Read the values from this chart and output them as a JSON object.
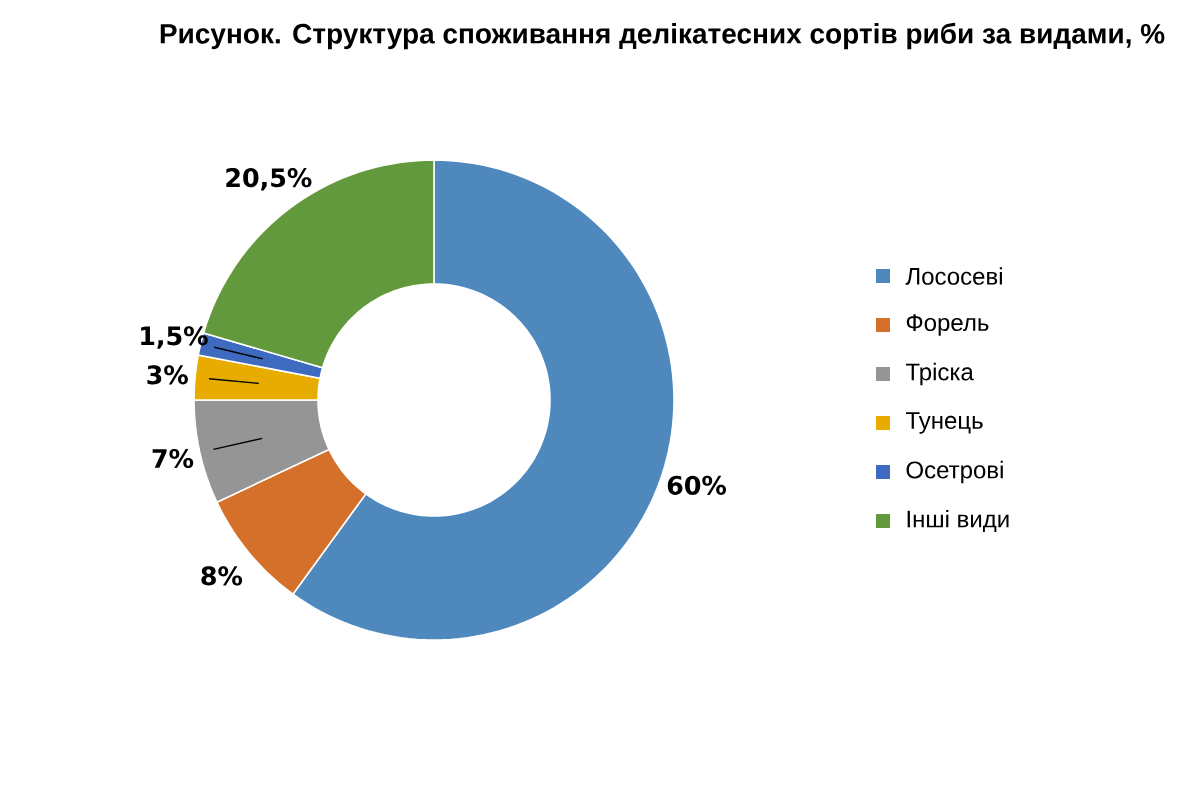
{
  "chart_data": {
    "type": "donut",
    "title": "Рисунок. Структура споживання делікатесних сортів риби за видами, %",
    "categories": [
      "Лососеві",
      "Форель",
      "Тріска",
      "Тунець",
      "Осетрові",
      "Інші види"
    ],
    "values": [
      60,
      8,
      7,
      3,
      1.5,
      20.5
    ],
    "colors": [
      "#4f88bd",
      "#d5702a",
      "#959595",
      "#e8ab00",
      "#3e6bbf",
      "#63993d"
    ],
    "value_labels": [
      "60%",
      "8%",
      "7%",
      "3%",
      "1,5%",
      "20,5%"
    ],
    "legend": "right"
  }
}
